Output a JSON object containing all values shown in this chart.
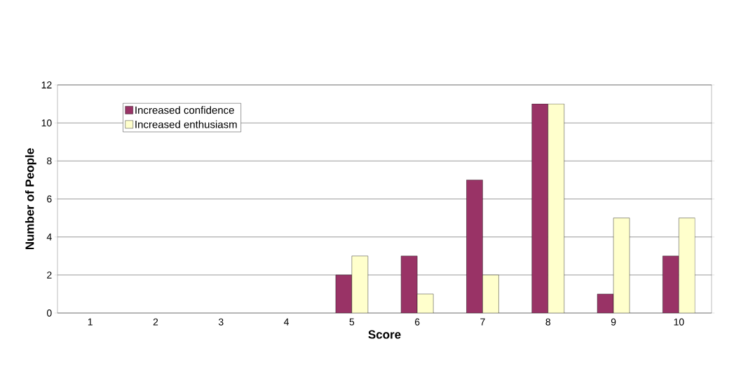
{
  "chart_data": {
    "type": "bar",
    "xlabel": "Score",
    "ylabel": "Number of People",
    "categories": [
      "1",
      "2",
      "3",
      "4",
      "5",
      "6",
      "7",
      "8",
      "9",
      "10"
    ],
    "series": [
      {
        "name": "Increased confidence",
        "color": "#993366",
        "values": [
          0,
          0,
          0,
          0,
          2,
          3,
          7,
          11,
          1,
          3
        ]
      },
      {
        "name": "Increased enthusiasm",
        "color": "#ffffcc",
        "values": [
          0,
          0,
          0,
          0,
          3,
          1,
          2,
          11,
          5,
          5
        ]
      }
    ],
    "ylim": [
      0,
      12
    ],
    "yticks": [
      0,
      2,
      4,
      6,
      8,
      10,
      12
    ],
    "grid": "y",
    "legend": "top left"
  }
}
